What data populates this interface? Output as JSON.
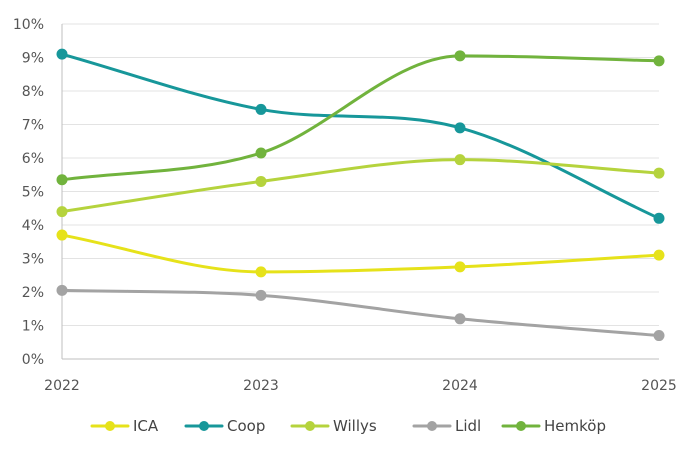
{
  "chart_data": {
    "type": "line",
    "smooth": true,
    "x": [
      "2022",
      "2023",
      "2024",
      "2025"
    ],
    "y_ticks": [
      "0%",
      "1%",
      "2%",
      "3%",
      "4%",
      "5%",
      "6%",
      "7%",
      "8%",
      "9%",
      "10%"
    ],
    "ylim": [
      0,
      10
    ],
    "y_unit": "%",
    "grid": true,
    "legend_position": "bottom",
    "series": [
      {
        "name": "ICA",
        "color": "#e6e21a",
        "values": [
          3.7,
          2.6,
          2.75,
          3.1
        ]
      },
      {
        "name": "Coop",
        "color": "#17979a",
        "values": [
          9.1,
          7.45,
          6.9,
          4.2
        ]
      },
      {
        "name": "Willys",
        "color": "#b5d33d",
        "values": [
          4.4,
          5.3,
          5.95,
          5.55
        ]
      },
      {
        "name": "Lidl",
        "color": "#a3a3a3",
        "values": [
          2.05,
          1.9,
          1.2,
          0.7
        ]
      },
      {
        "name": "Hemköp",
        "color": "#71b33d",
        "values": [
          5.35,
          6.15,
          9.05,
          8.9
        ]
      }
    ]
  }
}
